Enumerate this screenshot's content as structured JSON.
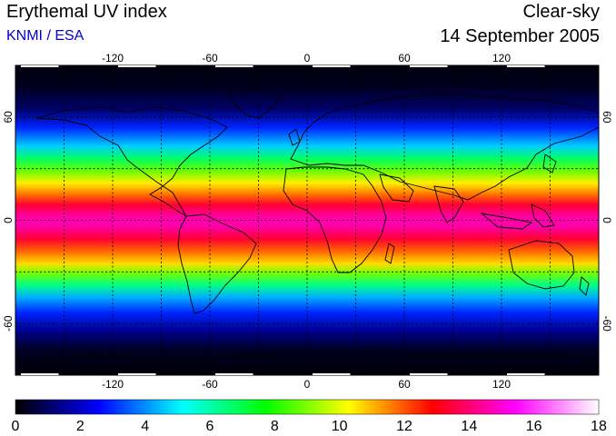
{
  "header": {
    "title": "Erythemal UV index",
    "source": "KNMI / ESA",
    "mode": "Clear-sky",
    "date": "14 September 2005"
  },
  "map": {
    "projection": "equirectangular",
    "lon_range": [
      -180,
      180
    ],
    "lat_range": [
      -90,
      90
    ],
    "lon_ticks": [
      -120,
      -60,
      0,
      60,
      120
    ],
    "lat_ticks": [
      60,
      0,
      -60
    ],
    "gridlines_every_deg": 30,
    "gridline_style": "dotted"
  },
  "colorbar": {
    "labels": [
      "0",
      "2",
      "4",
      "6",
      "8",
      "10",
      "12",
      "14",
      "16",
      "18"
    ],
    "min": 0,
    "max": 18,
    "colors": [
      "#000000",
      "#0000ff",
      "#00ffff",
      "#00ff00",
      "#ffff00",
      "#ff0000",
      "#ff00ff",
      "#ffffff"
    ]
  }
}
